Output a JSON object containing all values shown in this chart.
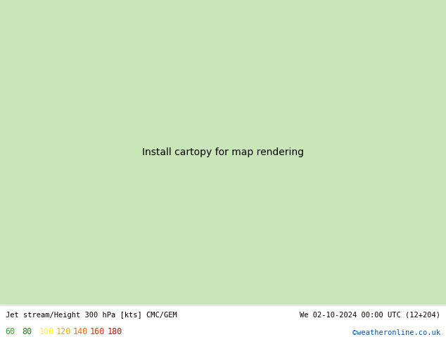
{
  "title_left": "Jet stream/Height 300 hPa [kts] CMC/GEM",
  "title_right": "We 02-10-2024 00:00 UTC (12+204)",
  "copyright": "©weatheronline.co.uk",
  "legend_values": [
    60,
    80,
    100,
    120,
    140,
    160,
    180
  ],
  "legend_colors": [
    "#00cc00",
    "#009900",
    "#ffff00",
    "#ffaa00",
    "#ff6600",
    "#ff2200",
    "#cc0000"
  ],
  "bg_color": "#ffffff",
  "ocean_color": "#cecece",
  "land_color": "#c8e6b8",
  "coast_color": "#888888",
  "border_color": "#aaaaaa",
  "contour_color": "#000000",
  "jet_bounds": [
    60,
    80,
    100,
    120,
    140,
    160,
    180,
    220
  ],
  "jet_fill_colors": [
    "#44dd44",
    "#009900",
    "#ffff00",
    "#ffaa00",
    "#ff6600",
    "#ff2200",
    "#cc0000"
  ],
  "height_levels": [
    816,
    828,
    840,
    852,
    864,
    876,
    888,
    900,
    912,
    924,
    936,
    948,
    960,
    972,
    984
  ],
  "figsize": [
    6.34,
    4.9
  ],
  "dpi": 100
}
